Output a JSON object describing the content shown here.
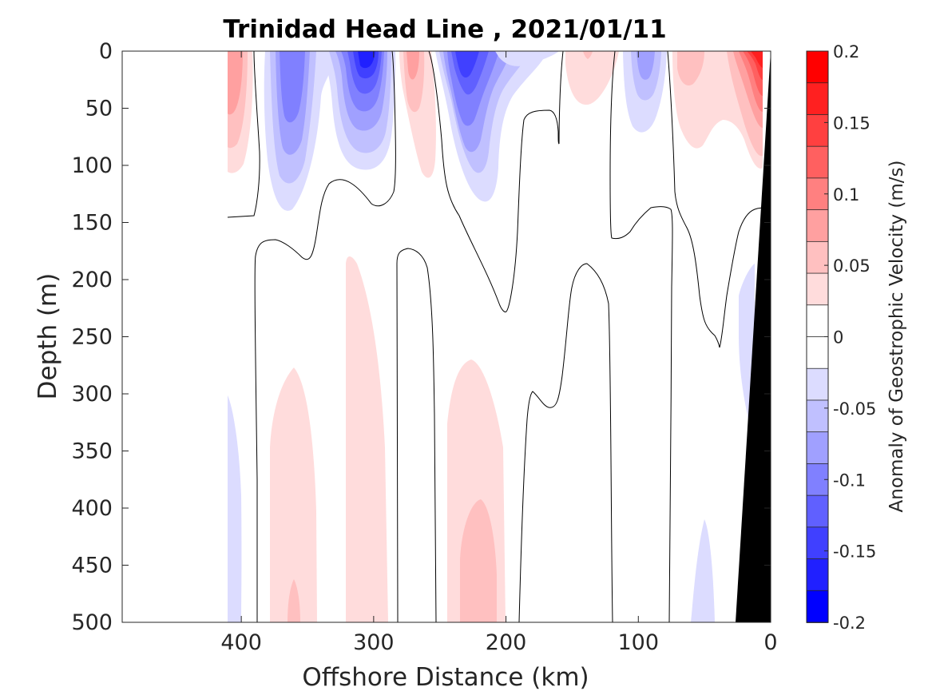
{
  "chart_data": {
    "type": "contour",
    "title": "Trinidad Head Line , 2021/01/11",
    "xlabel": "Offshore Distance (km)",
    "ylabel": "Depth (m)",
    "xlim": [
      490,
      0
    ],
    "ylim": [
      0,
      500
    ],
    "x_reversed": true,
    "y_reversed": true,
    "xticks": [
      400,
      300,
      200,
      100,
      0
    ],
    "yticks": [
      0,
      50,
      100,
      150,
      200,
      250,
      300,
      350,
      400,
      450,
      500
    ],
    "colorbar": {
      "label": "Anomaly of Geostrophic Velocity (m/s)",
      "range": [
        -0.2,
        0.2
      ],
      "levels": [
        -0.2,
        -0.175,
        -0.15,
        -0.125,
        -0.1,
        -0.075,
        -0.05,
        -0.025,
        0,
        0.025,
        0.05,
        0.075,
        0.1,
        0.125,
        0.15,
        0.175,
        0.2
      ],
      "ticks": [
        -0.2,
        -0.15,
        -0.1,
        -0.05,
        0,
        0.05,
        0.1,
        0.15,
        0.2
      ],
      "tick_labels": [
        "-0.2",
        "-0.15",
        "-0.1",
        "-0.05",
        "0",
        "0.05",
        "0.1",
        "0.15",
        "0.2"
      ],
      "colors": [
        "#0000ff",
        "#2020ff",
        "#4040ff",
        "#6060ff",
        "#8080ff",
        "#a0a0ff",
        "#c0c0ff",
        "#dcdcff",
        "#ffffff",
        "#ffffff",
        "#ffdcdc",
        "#ffc0c0",
        "#ffa0a0",
        "#ff8080",
        "#ff6060",
        "#ff4040",
        "#ff2020",
        "#ff0000"
      ]
    },
    "cores": [
      {
        "x": 402,
        "depth": 20,
        "value": 0.08
      },
      {
        "x": 360,
        "depth": 40,
        "value": -0.1
      },
      {
        "x": 305,
        "depth": 10,
        "value": -0.17
      },
      {
        "x": 270,
        "depth": 20,
        "value": 0.06
      },
      {
        "x": 230,
        "depth": 30,
        "value": -0.14
      },
      {
        "x": 190,
        "depth": 15,
        "value": -0.05
      },
      {
        "x": 135,
        "depth": 20,
        "value": 0.04
      },
      {
        "x": 85,
        "depth": 25,
        "value": -0.08
      },
      {
        "x": 55,
        "depth": 30,
        "value": 0.05
      },
      {
        "x": 15,
        "depth": 10,
        "value": 0.18
      },
      {
        "x": 360,
        "depth": 420,
        "value": 0.05
      },
      {
        "x": 300,
        "depth": 350,
        "value": 0.04
      },
      {
        "x": 225,
        "depth": 430,
        "value": 0.07
      },
      {
        "x": 410,
        "depth": 400,
        "value": -0.03
      },
      {
        "x": 55,
        "depth": 460,
        "value": -0.04
      }
    ],
    "bathymetry": [
      [
        0,
        0
      ],
      [
        0,
        500
      ],
      [
        25,
        500
      ]
    ]
  }
}
